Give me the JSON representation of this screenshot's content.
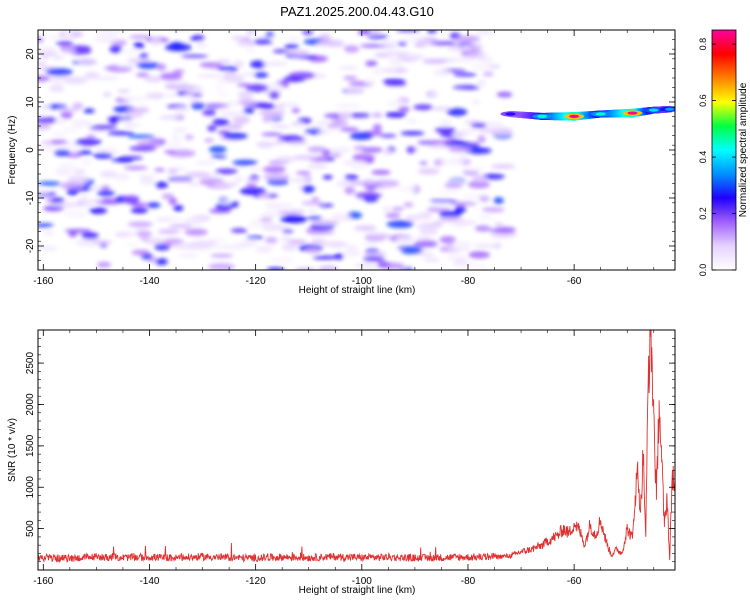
{
  "figure": {
    "title": "PAZ1.2025.200.04.43.G10"
  },
  "chart_data": [
    {
      "type": "heatmap",
      "xlabel": "Height of straight line (km)",
      "ylabel": "Frequency (Hz)",
      "xlim": [
        -161,
        -41
      ],
      "ylim": [
        -25,
        25
      ],
      "x_ticks": [
        -160,
        -140,
        -120,
        -100,
        -80,
        -60
      ],
      "y_ticks": [
        -20,
        -10,
        0,
        10,
        20
      ],
      "x_tick_labels": [
        "-160",
        "-140",
        "-120",
        "-100",
        "-80",
        "-60"
      ],
      "y_tick_labels": [
        "-20",
        "-10",
        "0",
        "10",
        "20"
      ],
      "colorbar": {
        "label": "Normalized spectral amplitude",
        "range": [
          0,
          0.85
        ],
        "ticks": [
          0,
          0.2,
          0.4,
          0.6,
          0.8
        ],
        "tick_labels": [
          "0.0",
          "0.2",
          "0.4",
          "0.6",
          "0.8"
        ],
        "colors": [
          "#ffffff",
          "#e6d2ff",
          "#a060ff",
          "#2000ff",
          "#0090ff",
          "#00ffff",
          "#00ff40",
          "#ffff00",
          "#ff8000",
          "#ff0000",
          "#ff00a0"
        ]
      },
      "noise_region": {
        "x_range": [
          -161,
          -73
        ],
        "y_range": [
          -25,
          25
        ],
        "typical_amplitude": [
          0.02,
          0.3
        ]
      },
      "signal_tone": {
        "points": [
          {
            "x": -72,
            "y": 7.5,
            "amplitude": 0.25
          },
          {
            "x": -66,
            "y": 7.0,
            "amplitude": 0.45
          },
          {
            "x": -60,
            "y": 7.0,
            "amplitude": 0.85
          },
          {
            "x": -55,
            "y": 7.5,
            "amplitude": 0.45
          },
          {
            "x": -49,
            "y": 7.7,
            "amplitude": 0.85
          },
          {
            "x": -45,
            "y": 8.3,
            "amplitude": 0.4
          },
          {
            "x": -42,
            "y": 8.5,
            "amplitude": 0.35
          }
        ]
      }
    },
    {
      "type": "line",
      "xlabel": "Height of straight line (km)",
      "ylabel": "SNR (10 * v/v)",
      "xlim": [
        -161,
        -41
      ],
      "ylim": [
        0,
        2900
      ],
      "x_ticks": [
        -160,
        -140,
        -120,
        -100,
        -80,
        -60
      ],
      "y_ticks": [
        500,
        1000,
        1500,
        2000,
        2500
      ],
      "x_tick_labels": [
        "-160",
        "-140",
        "-120",
        "-100",
        "-80",
        "-60"
      ],
      "y_tick_labels": [
        "500",
        "1000",
        "1500",
        "2000",
        "2500"
      ],
      "series": [
        {
          "color": "#e03030",
          "x": [
            -161,
            -155,
            -150,
            -145,
            -140,
            -135,
            -130,
            -125,
            -120,
            -115,
            -110,
            -105,
            -100,
            -95,
            -90,
            -85,
            -80,
            -75,
            -72,
            -70,
            -68,
            -66,
            -65,
            -63,
            -62,
            -61,
            -60,
            -59,
            -58,
            -57,
            -56,
            -55,
            -54,
            -53,
            -52,
            -51,
            -50,
            -49,
            -48.5,
            -48,
            -47.5,
            -47,
            -46.5,
            -46,
            -45.5,
            -45,
            -44.5,
            -44,
            -43.5,
            -43,
            -42.5,
            -42,
            -41.5,
            -41
          ],
          "y": [
            150,
            140,
            160,
            150,
            155,
            145,
            160,
            150,
            145,
            155,
            150,
            160,
            150,
            155,
            145,
            150,
            155,
            160,
            170,
            220,
            250,
            300,
            350,
            420,
            500,
            440,
            560,
            480,
            300,
            550,
            420,
            600,
            350,
            180,
            250,
            200,
            500,
            380,
            900,
            1200,
            700,
            1400,
            400,
            2500,
            2800,
            1900,
            850,
            2050,
            1300,
            520,
            900,
            120,
            1200,
            980
          ]
        }
      ]
    }
  ]
}
